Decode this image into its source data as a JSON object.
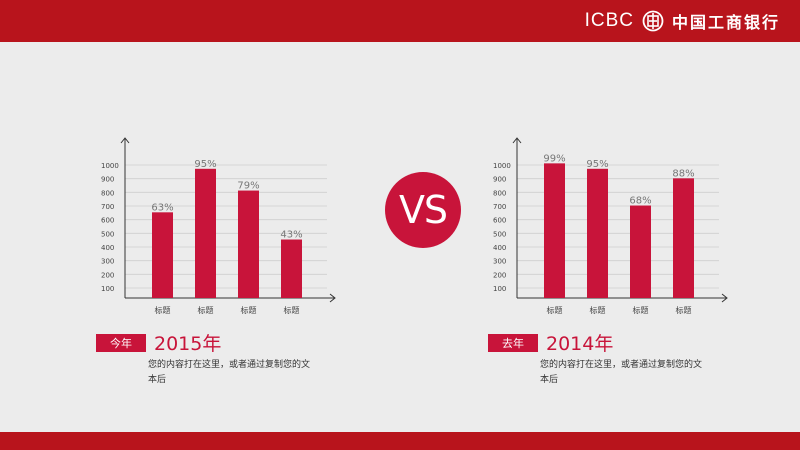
{
  "brand": {
    "latin": "ICBC",
    "name": "中国工商银行"
  },
  "vs_label": "VS",
  "colors": {
    "accent": "#c8143a",
    "bar_top": "#b8141c"
  },
  "chart_data": [
    {
      "type": "bar",
      "categories": [
        "标题",
        "标题",
        "标题",
        "标题"
      ],
      "values": [
        63,
        95,
        79,
        43
      ],
      "data_labels": [
        "63%",
        "95%",
        "79%",
        "43%"
      ],
      "y_ticks": [
        "1000",
        "900",
        "800",
        "700",
        "600",
        "500",
        "400",
        "300",
        "200",
        "100"
      ],
      "ylim": [
        0,
        100
      ],
      "grid": true
    },
    {
      "type": "bar",
      "categories": [
        "标题",
        "标题",
        "标题",
        "标题"
      ],
      "values": [
        99,
        95,
        68,
        88
      ],
      "data_labels": [
        "99%",
        "95%",
        "68%",
        "88%"
      ],
      "y_ticks": [
        "1000",
        "900",
        "800",
        "700",
        "600",
        "500",
        "400",
        "300",
        "200",
        "100"
      ],
      "ylim": [
        0,
        100
      ],
      "grid": true
    }
  ],
  "left": {
    "tag": "今年",
    "year": "2015年",
    "description": "您的内容打在这里，或者通过复制您的文本后"
  },
  "right": {
    "tag": "去年",
    "year": "2014年",
    "description": "您的内容打在这里，或者通过复制您的文本后"
  }
}
